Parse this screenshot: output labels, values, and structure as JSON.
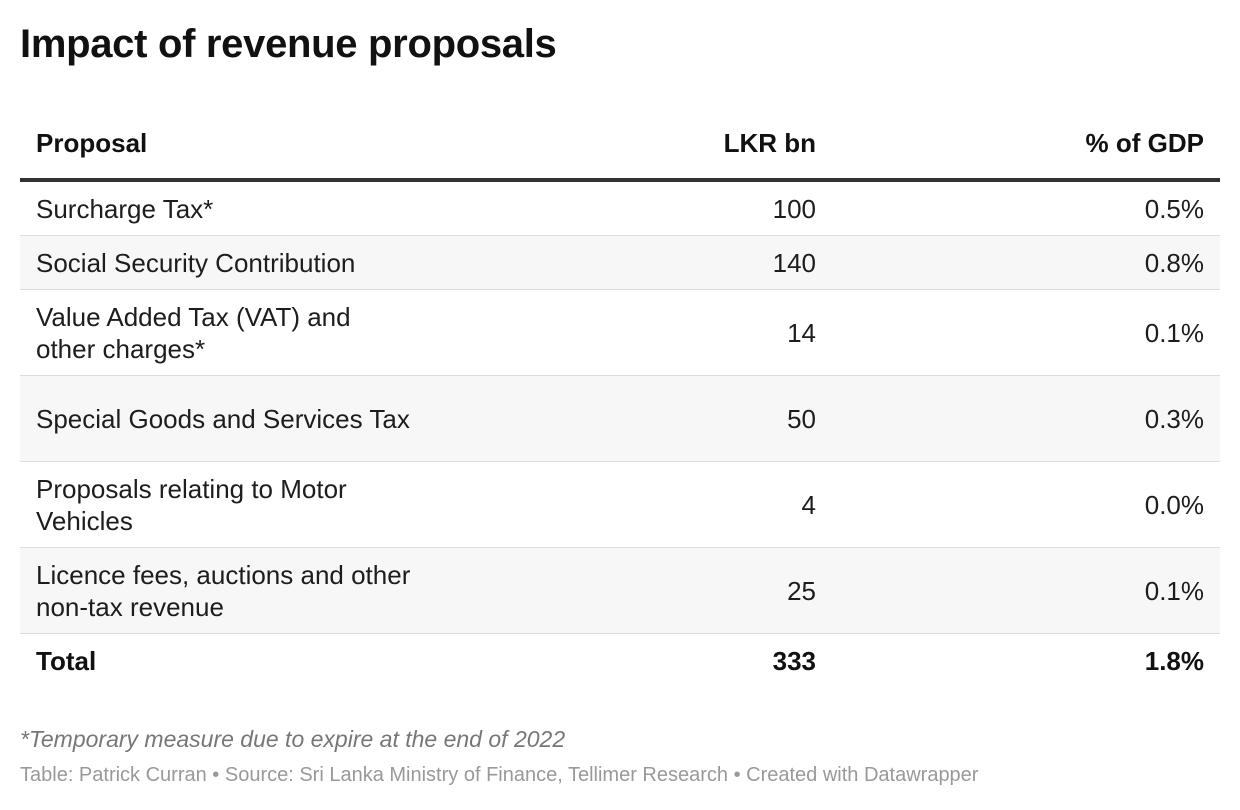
{
  "chart_data": {
    "type": "table",
    "title": "Impact of revenue proposals",
    "columns": [
      "Proposal",
      "LKR bn",
      "% of GDP"
    ],
    "rows": [
      {
        "proposal": "Surcharge Tax*",
        "lkr_bn": "100",
        "pct_gdp": "0.5%"
      },
      {
        "proposal": "Social Security Contribution",
        "lkr_bn": "140",
        "pct_gdp": "0.8%"
      },
      {
        "proposal": "Value Added Tax (VAT) and other charges*",
        "lkr_bn": "14",
        "pct_gdp": "0.1%"
      },
      {
        "proposal": "Special Goods and Services Tax",
        "lkr_bn": "50",
        "pct_gdp": "0.3%"
      },
      {
        "proposal": "Proposals relating to Motor Vehicles",
        "lkr_bn": "4",
        "pct_gdp": "0.0%"
      },
      {
        "proposal": "Licence fees, auctions and other non-tax revenue",
        "lkr_bn": "25",
        "pct_gdp": "0.1%"
      }
    ],
    "total": {
      "proposal": "Total",
      "lkr_bn": "333",
      "pct_gdp": "1.8%"
    },
    "footnote": "*Temporary measure due to expire at the end of 2022",
    "credits": "Table: Patrick Curran • Source: Sri Lanka Ministry of Finance, Tellimer Research • Created with Datawrapper"
  },
  "colors": {
    "text": "#1d1d1d",
    "header_rule": "#333333",
    "row_divider": "#dddddd",
    "zebra": "#f7f7f7",
    "muted": "#999999"
  }
}
